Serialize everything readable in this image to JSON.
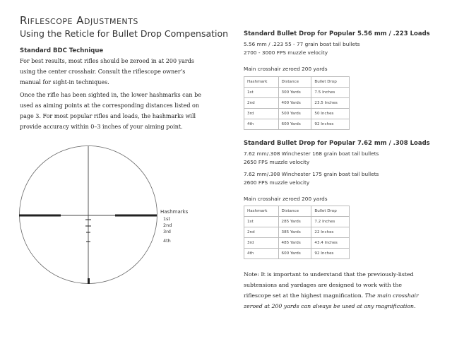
{
  "left": {
    "title": "Riflescope Adjustments",
    "subtitle": "Using the Reticle for Bullet Drop Compensation",
    "section_heading": "Standard BDC Technique",
    "paragraph1": [
      "For best results, most rifles should be zeroed in at 200 yards",
      "using the center crosshair. Consult the riflescope owner’s",
      "manual for sight-in techniques."
    ],
    "paragraph2": [
      "Once the rifle has been sighted in, the lower hashmarks can be",
      "used as aiming points at the corresponding distances listed on",
      "page 3. For most popular rifles and loads, the hashmarks will",
      "provide accuracy within 0–3 inches of your aiming point."
    ],
    "reticle": {
      "label": "Hashmarks",
      "marks": [
        "1st",
        "2nd",
        "3rd",
        "4th"
      ]
    }
  },
  "right": {
    "section1": {
      "heading": "Standard Bullet Drop for Popular 5.56 mm / .223 Loads",
      "lines": [
        "5.56 mm / .223  55 - 77 grain boat tail bullets",
        "2700 - 3000 FPS muzzle velocity"
      ],
      "zero_note": "Main crosshair zeroed 200 yards",
      "table": {
        "headers": [
          "Hashmark",
          "Distance",
          "Bullet Drop"
        ],
        "rows": [
          [
            "1st",
            "300 Yards",
            "7.5 Inches"
          ],
          [
            "2nd",
            "400 Yards",
            "23.5 Inches"
          ],
          [
            "3rd",
            "500 Yards",
            "50 Inches"
          ],
          [
            "4th",
            "600 Yards",
            "92 Inches"
          ]
        ]
      }
    },
    "section2": {
      "heading": "Standard Bullet Drop for Popular 7.62 mm / .308 Loads",
      "lines": [
        "7.62 mm/.308 Winchester 168 grain boat tail bullets",
        "2650 FPS muzzle velocity",
        "7.62 mm/.308 Winchester 175 grain boat tail bullets",
        "2600 FPS muzzle velocity"
      ],
      "zero_note": "Main crosshair zeroed 200 yards",
      "table": {
        "headers": [
          "Hashmark",
          "Distance",
          "Bullet Drop"
        ],
        "rows": [
          [
            "1st",
            "285 Yards",
            "7.2 Inches"
          ],
          [
            "2nd",
            "385 Yards",
            "22 Inches"
          ],
          [
            "3rd",
            "485 Yards",
            "43.4 Inches"
          ],
          [
            "4th",
            "600 Yards",
            "92 Inches"
          ]
        ]
      }
    },
    "note": {
      "plain": "Note: It is important to understand that the previously-listed subtensions and yardages are designed to work with the riflescope set at the highest magnification. ",
      "italic": "The main crosshair zeroed at 200 yards can always be used at any magnification."
    }
  }
}
